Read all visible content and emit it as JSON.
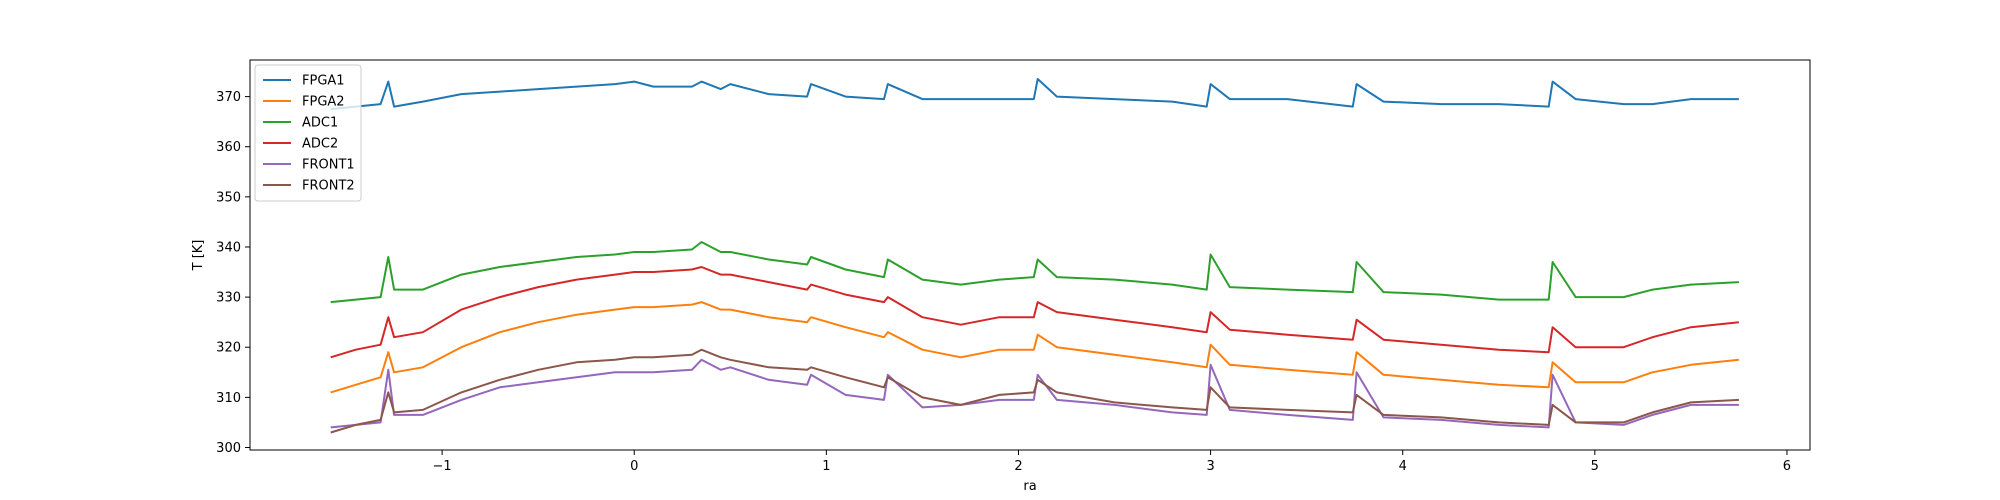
{
  "chart_data": {
    "type": "line",
    "xlabel": "ra",
    "ylabel": "T [K]",
    "xlim": [
      -2.0,
      6.12
    ],
    "ylim": [
      299.5,
      377.3
    ],
    "xticks": [
      -1,
      0,
      1,
      2,
      3,
      4,
      5,
      6
    ],
    "xtick_labels": [
      "−1",
      "0",
      "1",
      "2",
      "3",
      "4",
      "5",
      "6"
    ],
    "yticks": [
      300,
      310,
      320,
      330,
      340,
      350,
      360,
      370
    ],
    "ytick_labels": [
      "300",
      "310",
      "320",
      "330",
      "340",
      "350",
      "360",
      "370"
    ],
    "grid": false,
    "legend_position": "upper left",
    "x": [
      -1.58,
      -1.45,
      -1.32,
      -1.28,
      -1.25,
      -1.1,
      -0.9,
      -0.7,
      -0.5,
      -0.3,
      -0.1,
      0.0,
      0.1,
      0.3,
      0.35,
      0.45,
      0.5,
      0.7,
      0.9,
      0.92,
      1.1,
      1.3,
      1.32,
      1.5,
      1.7,
      1.9,
      2.08,
      2.1,
      2.2,
      2.5,
      2.8,
      2.98,
      3.0,
      3.1,
      3.4,
      3.74,
      3.76,
      3.9,
      4.2,
      4.5,
      4.76,
      4.78,
      4.9,
      5.15,
      5.3,
      5.5,
      5.75
    ],
    "series": [
      {
        "name": "FPGA1",
        "color": "#1f77b4",
        "values": [
          367.5,
          368.0,
          368.5,
          373.0,
          368.0,
          369.0,
          370.5,
          371.0,
          371.5,
          372.0,
          372.5,
          373.0,
          372.0,
          372.0,
          373.0,
          371.5,
          372.5,
          370.5,
          370.0,
          372.5,
          370.0,
          369.5,
          372.5,
          369.5,
          369.5,
          369.5,
          369.5,
          373.5,
          370.0,
          369.5,
          369.0,
          368.0,
          372.5,
          369.5,
          369.5,
          368.0,
          372.5,
          369.0,
          368.5,
          368.5,
          368.0,
          373.0,
          369.5,
          368.5,
          368.5,
          369.5,
          369.5
        ]
      },
      {
        "name": "FPGA2",
        "color": "#ff7f0e",
        "values": [
          311.0,
          312.5,
          314.0,
          319.0,
          315.0,
          316.0,
          320.0,
          323.0,
          325.0,
          326.5,
          327.5,
          328.0,
          328.0,
          328.5,
          329.0,
          327.5,
          327.5,
          326.0,
          325.0,
          326.0,
          324.0,
          322.0,
          323.0,
          319.5,
          318.0,
          319.5,
          319.5,
          322.5,
          320.0,
          318.5,
          317.0,
          316.0,
          320.5,
          316.5,
          315.5,
          314.5,
          319.0,
          314.5,
          313.5,
          312.5,
          312.0,
          317.0,
          313.0,
          313.0,
          315.0,
          316.5,
          317.5
        ]
      },
      {
        "name": "ADC1",
        "color": "#2ca02c",
        "values": [
          329.0,
          329.5,
          330.0,
          338.0,
          331.5,
          331.5,
          334.5,
          336.0,
          337.0,
          338.0,
          338.5,
          339.0,
          339.0,
          339.5,
          341.0,
          339.0,
          339.0,
          337.5,
          336.5,
          338.0,
          335.5,
          334.0,
          337.5,
          333.5,
          332.5,
          333.5,
          334.0,
          337.5,
          334.0,
          333.5,
          332.5,
          331.5,
          338.5,
          332.0,
          331.5,
          331.0,
          337.0,
          331.0,
          330.5,
          329.5,
          329.5,
          337.0,
          330.0,
          330.0,
          331.5,
          332.5,
          333.0
        ]
      },
      {
        "name": "ADC2",
        "color": "#d62728",
        "values": [
          318.0,
          319.5,
          320.5,
          326.0,
          322.0,
          323.0,
          327.5,
          330.0,
          332.0,
          333.5,
          334.5,
          335.0,
          335.0,
          335.5,
          336.0,
          334.5,
          334.5,
          333.0,
          331.5,
          332.5,
          330.5,
          329.0,
          330.0,
          326.0,
          324.5,
          326.0,
          326.0,
          329.0,
          327.0,
          325.5,
          324.0,
          323.0,
          327.0,
          323.5,
          322.5,
          321.5,
          325.5,
          321.5,
          320.5,
          319.5,
          319.0,
          324.0,
          320.0,
          320.0,
          322.0,
          324.0,
          325.0
        ]
      },
      {
        "name": "FRONT1",
        "color": "#9467bd",
        "values": [
          304.0,
          304.5,
          305.0,
          315.5,
          306.5,
          306.5,
          309.5,
          312.0,
          313.0,
          314.0,
          315.0,
          315.0,
          315.0,
          315.5,
          317.5,
          315.5,
          316.0,
          313.5,
          312.5,
          314.5,
          310.5,
          309.5,
          314.5,
          308.0,
          308.5,
          309.5,
          309.5,
          314.5,
          309.5,
          308.5,
          307.0,
          306.5,
          316.5,
          307.5,
          306.5,
          305.5,
          315.0,
          306.0,
          305.5,
          304.5,
          304.0,
          314.5,
          305.0,
          304.5,
          306.5,
          308.5,
          308.5
        ]
      },
      {
        "name": "FRONT2",
        "color": "#8c564b",
        "values": [
          303.0,
          304.5,
          305.5,
          311.0,
          307.0,
          307.5,
          311.0,
          313.5,
          315.5,
          317.0,
          317.5,
          318.0,
          318.0,
          318.5,
          319.5,
          318.0,
          317.5,
          316.0,
          315.5,
          316.0,
          314.0,
          312.0,
          314.0,
          310.0,
          308.5,
          310.5,
          311.0,
          313.5,
          311.0,
          309.0,
          308.0,
          307.5,
          312.0,
          308.0,
          307.5,
          307.0,
          310.5,
          306.5,
          306.0,
          305.0,
          304.5,
          308.5,
          305.0,
          305.0,
          307.0,
          309.0,
          309.5
        ]
      }
    ]
  }
}
